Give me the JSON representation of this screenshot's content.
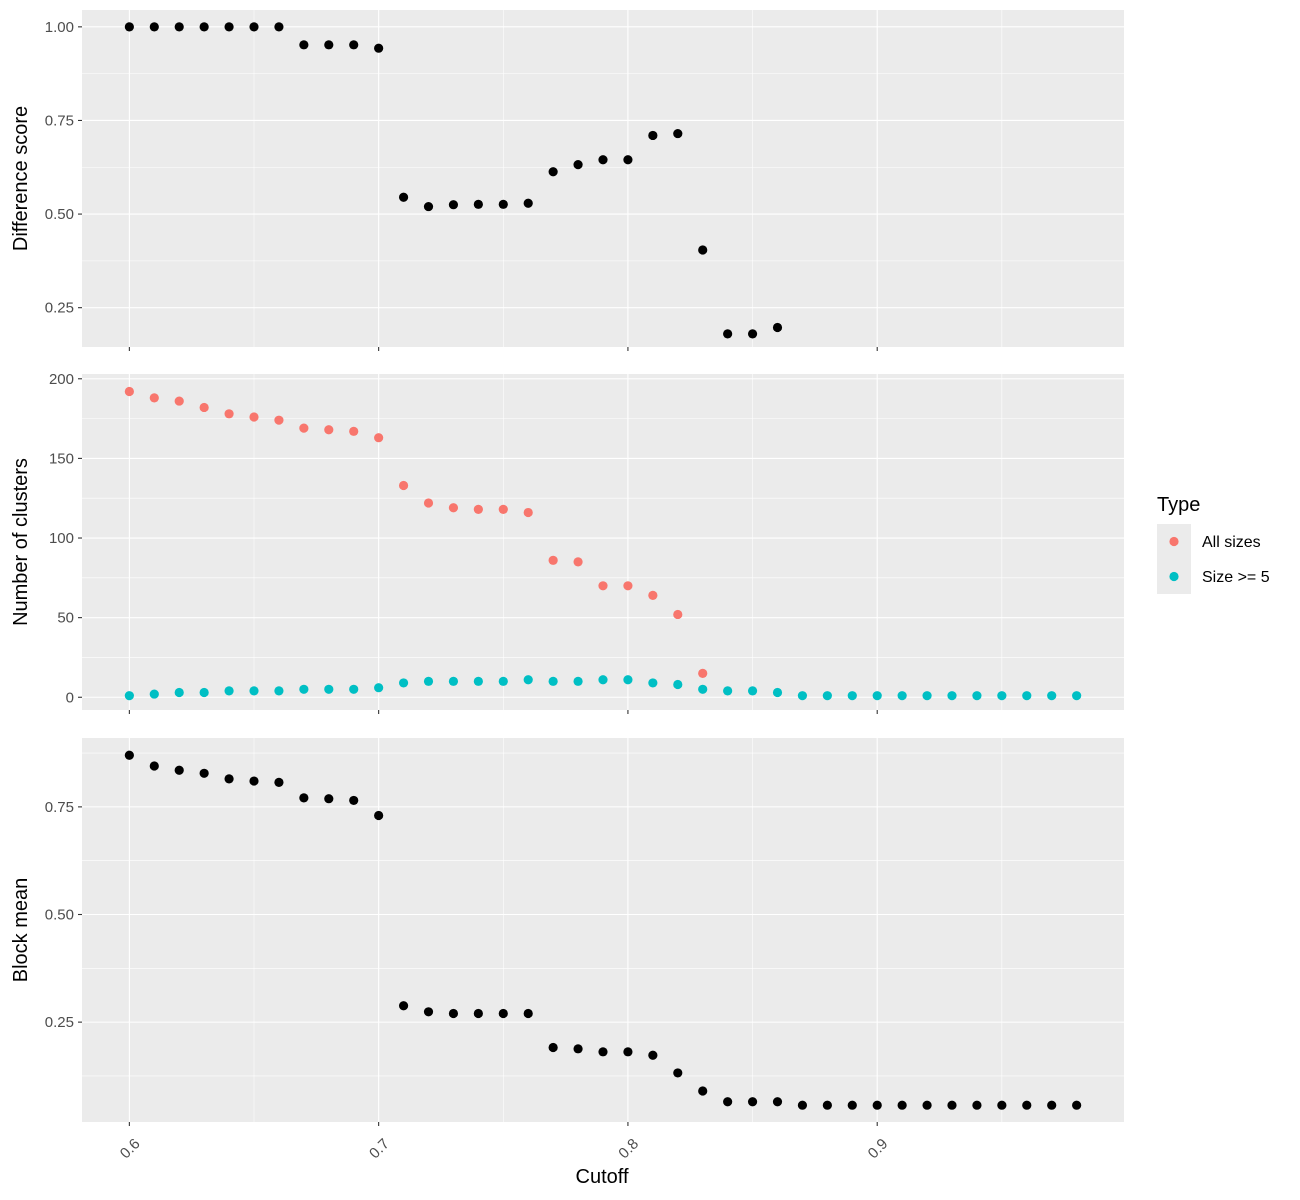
{
  "chart_data": [
    {
      "type": "scatter",
      "ylabel": "Difference score",
      "ylim": [
        0.145,
        1.045
      ],
      "yticks": [
        0.25,
        0.5,
        0.75,
        1.0
      ],
      "ytick_labels": [
        "0.25",
        "0.50",
        "0.75",
        "1.00"
      ],
      "grid": true,
      "series": [
        {
          "color": "#000000",
          "x": [
            0.6,
            0.61,
            0.62,
            0.63,
            0.64,
            0.65,
            0.66,
            0.67,
            0.68,
            0.69,
            0.7,
            0.71,
            0.72,
            0.73,
            0.74,
            0.75,
            0.76,
            0.77,
            0.78,
            0.79,
            0.8,
            0.81,
            0.82,
            0.83,
            0.84,
            0.85,
            0.86
          ],
          "y": [
            1.0,
            1.0,
            1.0,
            1.0,
            1.0,
            1.0,
            1.0,
            0.952,
            0.952,
            0.952,
            0.943,
            0.545,
            0.52,
            0.525,
            0.526,
            0.526,
            0.529,
            0.613,
            0.632,
            0.645,
            0.645,
            0.71,
            0.715,
            0.404,
            0.18,
            0.18,
            0.197
          ]
        }
      ]
    },
    {
      "type": "scatter",
      "ylabel": "Number of clusters",
      "ylim": [
        -8,
        203
      ],
      "yticks": [
        0,
        50,
        100,
        150,
        200
      ],
      "ytick_labels": [
        "0",
        "50",
        "100",
        "150",
        "200"
      ],
      "grid": true,
      "legend": {
        "title": "Type",
        "position": "right",
        "entries": [
          "All sizes",
          "Size >= 5"
        ]
      },
      "series": [
        {
          "name": "All sizes",
          "color": "#F8766D",
          "x": [
            0.6,
            0.61,
            0.62,
            0.63,
            0.64,
            0.65,
            0.66,
            0.67,
            0.68,
            0.69,
            0.7,
            0.71,
            0.72,
            0.73,
            0.74,
            0.75,
            0.76,
            0.77,
            0.78,
            0.79,
            0.8,
            0.81,
            0.82,
            0.83
          ],
          "y": [
            192,
            188,
            186,
            182,
            178,
            176,
            174,
            169,
            168,
            167,
            163,
            133,
            122,
            119,
            118,
            118,
            116,
            86,
            85,
            70,
            70,
            64,
            52,
            15
          ]
        },
        {
          "name": "Size >= 5",
          "color": "#00BFC4",
          "x": [
            0.6,
            0.61,
            0.62,
            0.63,
            0.64,
            0.65,
            0.66,
            0.67,
            0.68,
            0.69,
            0.7,
            0.71,
            0.72,
            0.73,
            0.74,
            0.75,
            0.76,
            0.77,
            0.78,
            0.79,
            0.8,
            0.81,
            0.82,
            0.83,
            0.84,
            0.85,
            0.86,
            0.87,
            0.88,
            0.89,
            0.9,
            0.91,
            0.92,
            0.93,
            0.94,
            0.95,
            0.96,
            0.97,
            0.98
          ],
          "y": [
            1,
            2,
            3,
            3,
            4,
            4,
            4,
            5,
            5,
            5,
            6,
            9,
            10,
            10,
            10,
            10,
            11,
            10,
            10,
            11,
            11,
            9,
            8,
            5,
            4,
            4,
            3,
            1,
            1,
            1,
            1,
            1,
            1,
            1,
            1,
            1,
            1,
            1,
            1
          ]
        }
      ]
    },
    {
      "type": "scatter",
      "xlabel": "Cutoff",
      "ylabel": "Block mean",
      "xlim": [
        0.581,
        0.999
      ],
      "xticks": [
        0.6,
        0.7,
        0.8,
        0.9
      ],
      "xtick_labels": [
        "0.6",
        "0.7",
        "0.8",
        "0.9"
      ],
      "ylim": [
        0.018,
        0.91
      ],
      "yticks": [
        0.25,
        0.5,
        0.75
      ],
      "ytick_labels": [
        "0.25",
        "0.50",
        "0.75"
      ],
      "grid": true,
      "series": [
        {
          "color": "#000000",
          "x": [
            0.6,
            0.61,
            0.62,
            0.63,
            0.64,
            0.65,
            0.66,
            0.67,
            0.68,
            0.69,
            0.7,
            0.71,
            0.72,
            0.73,
            0.74,
            0.75,
            0.76,
            0.77,
            0.78,
            0.79,
            0.8,
            0.81,
            0.82,
            0.83,
            0.84,
            0.85,
            0.86,
            0.87,
            0.88,
            0.89,
            0.9,
            0.91,
            0.92,
            0.93,
            0.94,
            0.95,
            0.96,
            0.97,
            0.98
          ],
          "y": [
            0.87,
            0.845,
            0.835,
            0.828,
            0.815,
            0.81,
            0.807,
            0.771,
            0.769,
            0.765,
            0.73,
            0.288,
            0.274,
            0.27,
            0.27,
            0.27,
            0.27,
            0.191,
            0.188,
            0.181,
            0.181,
            0.173,
            0.132,
            0.09,
            0.065,
            0.065,
            0.065,
            0.057,
            0.057,
            0.057,
            0.057,
            0.057,
            0.057,
            0.057,
            0.057,
            0.057,
            0.057,
            0.057,
            0.057
          ]
        }
      ]
    }
  ]
}
